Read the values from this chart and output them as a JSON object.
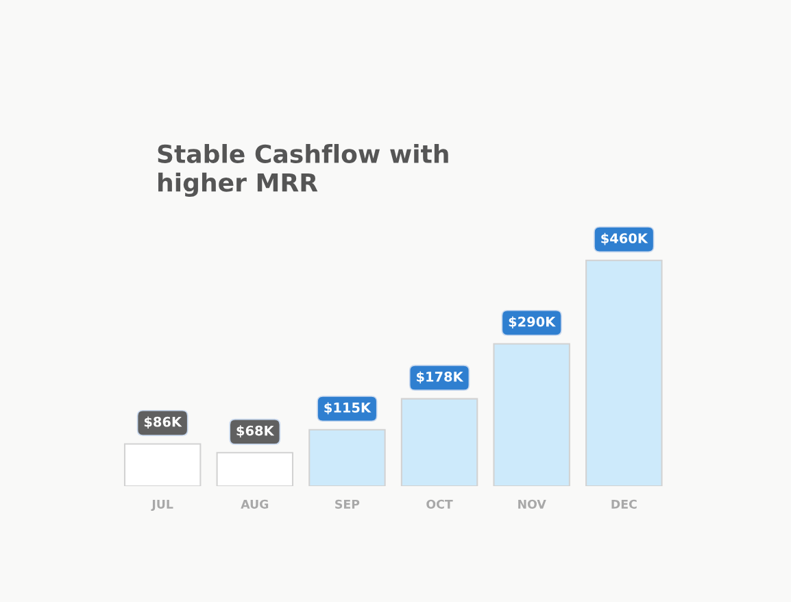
{
  "chart_data": {
    "type": "bar",
    "title": "Stable Cashflow with\nhigher MRR",
    "categories": [
      "JUL",
      "AUG",
      "SEP",
      "OCT",
      "NOV",
      "DEC"
    ],
    "values": [
      86,
      68,
      115,
      178,
      290,
      460
    ],
    "value_labels": [
      "$86K",
      "$68K",
      "$115K",
      "$178K",
      "$290K",
      "$460K"
    ],
    "colors": [
      "#ffffff",
      "#ffffff",
      "#cdeafb",
      "#cdeafb",
      "#cdeafb",
      "#cdeafb"
    ],
    "tick_labels": "x"
  }
}
